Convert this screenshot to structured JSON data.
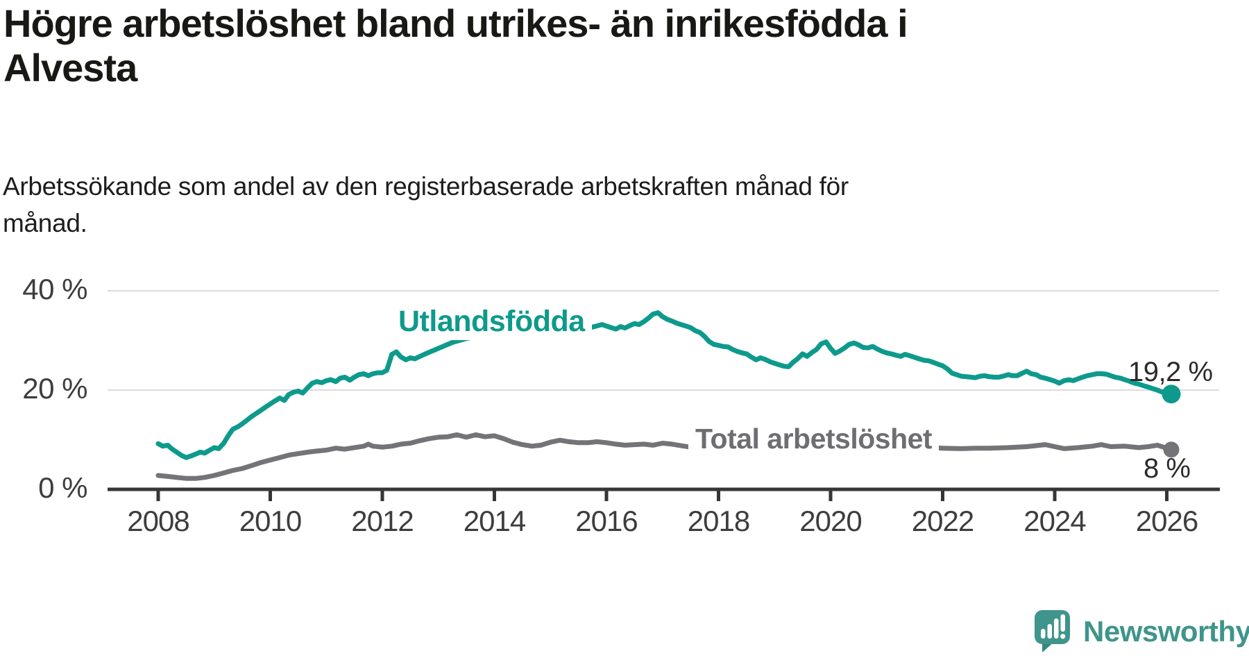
{
  "header": {
    "title_lines": [
      "Högre arbetslöshet bland utrikes- än inrikesfödda i",
      "Alvesta"
    ],
    "subtitle_lines": [
      "Arbetssökande som andel av den registerbaserade arbetskraften månad för",
      "månad."
    ]
  },
  "colors": {
    "background": "#ffffff",
    "title": "#181815",
    "axis_line": "#363636",
    "axis_text": "#3d3d3d",
    "gridline": "#dcdcdc",
    "value_label": "#2b2b2b",
    "brand": "#3f948b"
  },
  "chart_data": {
    "type": "line",
    "title": "Högre arbetslöshet bland utrikes- än inrikesfödda i Alvesta",
    "subtitle": "Arbetssökande som andel av den registerbaserade arbetskraften månad för månad.",
    "xlabel": "",
    "ylabel": "",
    "x_range": [
      2008,
      2026.5
    ],
    "ylim": [
      0,
      40
    ],
    "grid": "horizontal",
    "legend_position": "inline-labels",
    "x_axis": {
      "ticks": [
        2008,
        2010,
        2012,
        2014,
        2016,
        2018,
        2020,
        2022,
        2024,
        2026
      ]
    },
    "y_axis": {
      "ticks": [
        {
          "label": "0 %",
          "value": 0
        },
        {
          "label": "20 %",
          "value": 20
        },
        {
          "label": "40 %",
          "value": 40
        }
      ]
    },
    "series": [
      {
        "name": "Utlandsfödda",
        "color": "#0d9a8c",
        "end_label": "19,2 %",
        "end_value": 19.2,
        "points": [
          [
            2008.0,
            9.2
          ],
          [
            2008.08,
            8.7
          ],
          [
            2008.17,
            8.9
          ],
          [
            2008.25,
            8.1
          ],
          [
            2008.33,
            7.5
          ],
          [
            2008.42,
            6.8
          ],
          [
            2008.5,
            6.4
          ],
          [
            2008.58,
            6.7
          ],
          [
            2008.67,
            7.1
          ],
          [
            2008.75,
            7.5
          ],
          [
            2008.83,
            7.3
          ],
          [
            2008.92,
            7.9
          ],
          [
            2009.0,
            8.4
          ],
          [
            2009.08,
            8.2
          ],
          [
            2009.17,
            9.3
          ],
          [
            2009.25,
            10.8
          ],
          [
            2009.33,
            12.1
          ],
          [
            2009.42,
            12.6
          ],
          [
            2009.5,
            13.2
          ],
          [
            2009.58,
            13.9
          ],
          [
            2009.67,
            14.7
          ],
          [
            2009.75,
            15.3
          ],
          [
            2009.83,
            15.9
          ],
          [
            2009.92,
            16.6
          ],
          [
            2010.0,
            17.2
          ],
          [
            2010.08,
            17.8
          ],
          [
            2010.17,
            18.4
          ],
          [
            2010.25,
            17.9
          ],
          [
            2010.33,
            19.1
          ],
          [
            2010.42,
            19.6
          ],
          [
            2010.5,
            19.8
          ],
          [
            2010.58,
            19.4
          ],
          [
            2010.67,
            20.5
          ],
          [
            2010.75,
            21.4
          ],
          [
            2010.83,
            21.7
          ],
          [
            2010.92,
            21.5
          ],
          [
            2011.0,
            21.9
          ],
          [
            2011.08,
            22.1
          ],
          [
            2011.17,
            21.7
          ],
          [
            2011.25,
            22.4
          ],
          [
            2011.33,
            22.6
          ],
          [
            2011.42,
            22.0
          ],
          [
            2011.5,
            22.6
          ],
          [
            2011.58,
            23.1
          ],
          [
            2011.67,
            23.3
          ],
          [
            2011.75,
            22.9
          ],
          [
            2011.83,
            23.3
          ],
          [
            2011.92,
            23.5
          ],
          [
            2012.0,
            23.5
          ],
          [
            2012.08,
            24.0
          ],
          [
            2012.17,
            27.2
          ],
          [
            2012.25,
            27.7
          ],
          [
            2012.33,
            26.7
          ],
          [
            2012.42,
            26.1
          ],
          [
            2012.5,
            26.5
          ],
          [
            2012.58,
            26.3
          ],
          [
            2012.75,
            27.2
          ],
          [
            2013.0,
            28.4
          ],
          [
            2013.25,
            29.6
          ],
          [
            2013.5,
            30.4
          ],
          [
            2013.75,
            30.9
          ],
          [
            2014.0,
            31.4
          ],
          [
            2014.25,
            31.2
          ],
          [
            2014.5,
            31.6
          ],
          [
            2014.75,
            31.9
          ],
          [
            2015.0,
            32.1
          ],
          [
            2015.25,
            31.8
          ],
          [
            2015.5,
            32.2
          ],
          [
            2015.75,
            32.7
          ],
          [
            2015.92,
            33.2
          ],
          [
            2016.0,
            32.9
          ],
          [
            2016.08,
            32.6
          ],
          [
            2016.17,
            32.3
          ],
          [
            2016.25,
            32.8
          ],
          [
            2016.33,
            32.5
          ],
          [
            2016.42,
            33.0
          ],
          [
            2016.5,
            33.4
          ],
          [
            2016.58,
            33.2
          ],
          [
            2016.67,
            33.8
          ],
          [
            2016.75,
            34.5
          ],
          [
            2016.83,
            35.3
          ],
          [
            2016.92,
            35.6
          ],
          [
            2017.0,
            34.8
          ],
          [
            2017.08,
            34.3
          ],
          [
            2017.17,
            33.9
          ],
          [
            2017.25,
            33.5
          ],
          [
            2017.33,
            33.2
          ],
          [
            2017.42,
            32.9
          ],
          [
            2017.5,
            32.6
          ],
          [
            2017.58,
            32.0
          ],
          [
            2017.67,
            31.6
          ],
          [
            2017.75,
            30.8
          ],
          [
            2017.83,
            29.8
          ],
          [
            2017.92,
            29.2
          ],
          [
            2018.0,
            29.0
          ],
          [
            2018.08,
            28.8
          ],
          [
            2018.17,
            28.7
          ],
          [
            2018.25,
            28.2
          ],
          [
            2018.33,
            27.8
          ],
          [
            2018.42,
            27.5
          ],
          [
            2018.5,
            27.3
          ],
          [
            2018.58,
            26.7
          ],
          [
            2018.67,
            26.1
          ],
          [
            2018.75,
            26.5
          ],
          [
            2018.83,
            26.2
          ],
          [
            2018.92,
            25.7
          ],
          [
            2019.0,
            25.4
          ],
          [
            2019.08,
            25.1
          ],
          [
            2019.17,
            24.8
          ],
          [
            2019.25,
            24.7
          ],
          [
            2019.33,
            25.6
          ],
          [
            2019.42,
            26.4
          ],
          [
            2019.5,
            27.3
          ],
          [
            2019.58,
            26.8
          ],
          [
            2019.67,
            27.6
          ],
          [
            2019.75,
            28.2
          ],
          [
            2019.83,
            29.3
          ],
          [
            2019.92,
            29.7
          ],
          [
            2020.0,
            28.4
          ],
          [
            2020.08,
            27.4
          ],
          [
            2020.17,
            27.9
          ],
          [
            2020.25,
            28.5
          ],
          [
            2020.33,
            29.2
          ],
          [
            2020.42,
            29.5
          ],
          [
            2020.5,
            29.1
          ],
          [
            2020.58,
            28.6
          ],
          [
            2020.67,
            28.5
          ],
          [
            2020.75,
            28.8
          ],
          [
            2020.83,
            28.3
          ],
          [
            2020.92,
            27.8
          ],
          [
            2021.0,
            27.5
          ],
          [
            2021.08,
            27.3
          ],
          [
            2021.17,
            27.0
          ],
          [
            2021.25,
            26.8
          ],
          [
            2021.33,
            27.2
          ],
          [
            2021.42,
            26.9
          ],
          [
            2021.5,
            26.6
          ],
          [
            2021.58,
            26.3
          ],
          [
            2021.67,
            26.0
          ],
          [
            2021.75,
            25.9
          ],
          [
            2021.83,
            25.6
          ],
          [
            2021.92,
            25.2
          ],
          [
            2022.0,
            24.9
          ],
          [
            2022.08,
            24.3
          ],
          [
            2022.17,
            23.4
          ],
          [
            2022.25,
            23.1
          ],
          [
            2022.33,
            22.8
          ],
          [
            2022.42,
            22.7
          ],
          [
            2022.5,
            22.6
          ],
          [
            2022.58,
            22.5
          ],
          [
            2022.67,
            22.8
          ],
          [
            2022.75,
            22.9
          ],
          [
            2022.83,
            22.7
          ],
          [
            2022.92,
            22.6
          ],
          [
            2023.0,
            22.6
          ],
          [
            2023.08,
            22.8
          ],
          [
            2023.17,
            23.1
          ],
          [
            2023.25,
            22.9
          ],
          [
            2023.33,
            22.9
          ],
          [
            2023.42,
            23.4
          ],
          [
            2023.5,
            23.8
          ],
          [
            2023.58,
            23.3
          ],
          [
            2023.67,
            23.1
          ],
          [
            2023.75,
            22.6
          ],
          [
            2023.83,
            22.4
          ],
          [
            2023.92,
            22.1
          ],
          [
            2024.0,
            21.8
          ],
          [
            2024.08,
            21.4
          ],
          [
            2024.17,
            21.9
          ],
          [
            2024.25,
            22.1
          ],
          [
            2024.33,
            21.9
          ],
          [
            2024.42,
            22.3
          ],
          [
            2024.5,
            22.6
          ],
          [
            2024.58,
            22.9
          ],
          [
            2024.67,
            23.1
          ],
          [
            2024.75,
            23.3
          ],
          [
            2024.83,
            23.3
          ],
          [
            2024.92,
            23.2
          ],
          [
            2025.0,
            22.9
          ],
          [
            2025.08,
            22.6
          ],
          [
            2025.17,
            22.4
          ],
          [
            2025.25,
            22.1
          ],
          [
            2025.33,
            21.8
          ],
          [
            2025.42,
            21.4
          ],
          [
            2025.5,
            21.2
          ],
          [
            2025.58,
            20.9
          ],
          [
            2025.67,
            20.6
          ],
          [
            2025.75,
            20.3
          ],
          [
            2025.83,
            20.0
          ],
          [
            2025.92,
            19.6
          ],
          [
            2026.0,
            19.4
          ],
          [
            2026.08,
            19.2
          ]
        ]
      },
      {
        "name": "Total arbetslöshet",
        "color": "#747478",
        "end_label": "8 %",
        "end_value": 8,
        "points": [
          [
            2008.0,
            2.8
          ],
          [
            2008.17,
            2.6
          ],
          [
            2008.33,
            2.4
          ],
          [
            2008.5,
            2.2
          ],
          [
            2008.67,
            2.2
          ],
          [
            2008.83,
            2.4
          ],
          [
            2009.0,
            2.8
          ],
          [
            2009.17,
            3.3
          ],
          [
            2009.33,
            3.8
          ],
          [
            2009.5,
            4.2
          ],
          [
            2009.67,
            4.8
          ],
          [
            2009.83,
            5.4
          ],
          [
            2010.0,
            5.9
          ],
          [
            2010.17,
            6.4
          ],
          [
            2010.33,
            6.9
          ],
          [
            2010.5,
            7.2
          ],
          [
            2010.67,
            7.5
          ],
          [
            2010.83,
            7.7
          ],
          [
            2011.0,
            7.9
          ],
          [
            2011.17,
            8.3
          ],
          [
            2011.33,
            8.1
          ],
          [
            2011.5,
            8.4
          ],
          [
            2011.67,
            8.7
          ],
          [
            2011.75,
            9.1
          ],
          [
            2011.83,
            8.7
          ],
          [
            2012.0,
            8.5
          ],
          [
            2012.17,
            8.7
          ],
          [
            2012.33,
            9.1
          ],
          [
            2012.5,
            9.3
          ],
          [
            2012.67,
            9.8
          ],
          [
            2012.83,
            10.2
          ],
          [
            2013.0,
            10.5
          ],
          [
            2013.17,
            10.6
          ],
          [
            2013.33,
            11.0
          ],
          [
            2013.5,
            10.5
          ],
          [
            2013.67,
            11.0
          ],
          [
            2013.83,
            10.6
          ],
          [
            2014.0,
            10.8
          ],
          [
            2014.17,
            10.2
          ],
          [
            2014.33,
            9.5
          ],
          [
            2014.5,
            9.0
          ],
          [
            2014.67,
            8.7
          ],
          [
            2014.83,
            8.9
          ],
          [
            2015.0,
            9.5
          ],
          [
            2015.17,
            9.9
          ],
          [
            2015.33,
            9.6
          ],
          [
            2015.5,
            9.4
          ],
          [
            2015.67,
            9.4
          ],
          [
            2015.83,
            9.6
          ],
          [
            2016.0,
            9.4
          ],
          [
            2016.17,
            9.1
          ],
          [
            2016.33,
            8.9
          ],
          [
            2016.5,
            9.0
          ],
          [
            2016.67,
            9.1
          ],
          [
            2016.83,
            8.9
          ],
          [
            2017.0,
            9.3
          ],
          [
            2017.17,
            9.1
          ],
          [
            2017.33,
            8.8
          ],
          [
            2017.5,
            8.5
          ],
          [
            2017.75,
            8.4
          ],
          [
            2018.0,
            8.6
          ],
          [
            2018.33,
            8.4
          ],
          [
            2018.67,
            8.2
          ],
          [
            2019.0,
            8.0
          ],
          [
            2019.33,
            8.1
          ],
          [
            2019.67,
            8.4
          ],
          [
            2020.0,
            8.9
          ],
          [
            2020.33,
            9.6
          ],
          [
            2020.67,
            9.4
          ],
          [
            2021.0,
            9.0
          ],
          [
            2021.33,
            8.7
          ],
          [
            2021.67,
            8.5
          ],
          [
            2022.0,
            8.3
          ],
          [
            2022.33,
            8.2
          ],
          [
            2022.58,
            8.3
          ],
          [
            2022.83,
            8.3
          ],
          [
            2023.17,
            8.4
          ],
          [
            2023.5,
            8.6
          ],
          [
            2023.83,
            9.0
          ],
          [
            2024.0,
            8.6
          ],
          [
            2024.17,
            8.2
          ],
          [
            2024.42,
            8.4
          ],
          [
            2024.67,
            8.7
          ],
          [
            2024.83,
            9.0
          ],
          [
            2025.0,
            8.6
          ],
          [
            2025.25,
            8.7
          ],
          [
            2025.5,
            8.4
          ],
          [
            2025.67,
            8.6
          ],
          [
            2025.83,
            8.9
          ],
          [
            2026.0,
            8.3
          ],
          [
            2026.08,
            8.0
          ]
        ]
      }
    ]
  },
  "branding": {
    "name": "Newsworthy"
  }
}
